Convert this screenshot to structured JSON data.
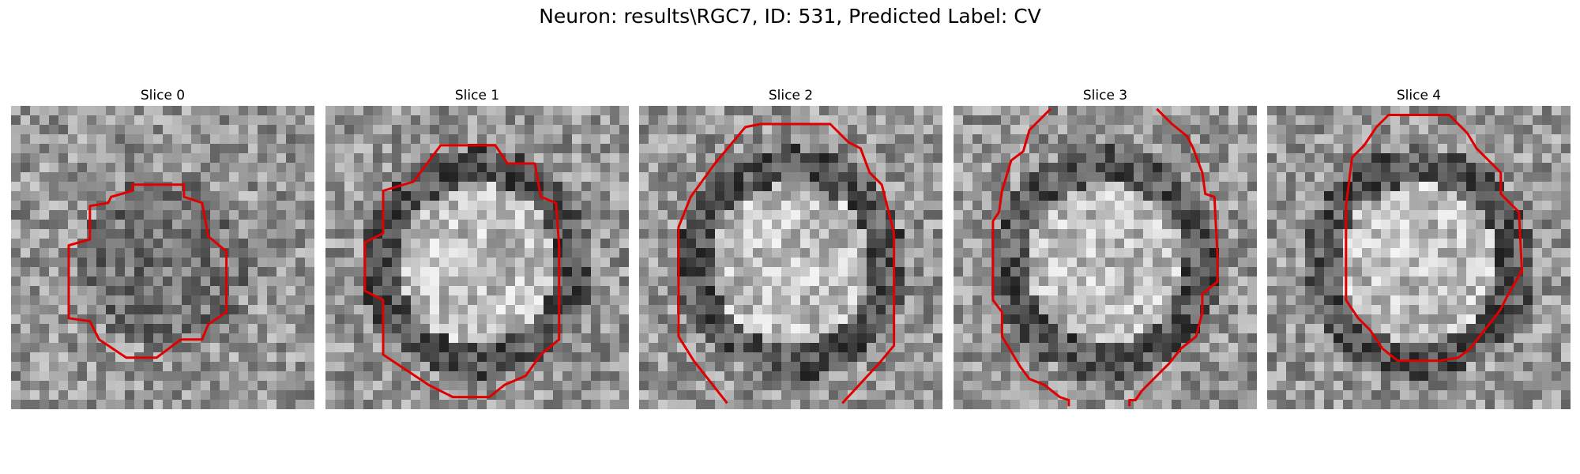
{
  "figure": {
    "suptitle": "Neuron: results\\RGC7, ID: 531, Predicted Label: CV",
    "contour_color": "#e00000"
  },
  "panels": [
    {
      "title": "Slice 0",
      "ring": "dark",
      "contour": [
        [
          0.4,
          0.26
        ],
        [
          0.57,
          0.26
        ],
        [
          0.57,
          0.3
        ],
        [
          0.63,
          0.32
        ],
        [
          0.65,
          0.43
        ],
        [
          0.71,
          0.48
        ],
        [
          0.71,
          0.68
        ],
        [
          0.65,
          0.72
        ],
        [
          0.63,
          0.77
        ],
        [
          0.56,
          0.77
        ],
        [
          0.48,
          0.83
        ],
        [
          0.38,
          0.83
        ],
        [
          0.29,
          0.77
        ],
        [
          0.26,
          0.71
        ],
        [
          0.19,
          0.7
        ],
        [
          0.19,
          0.46
        ],
        [
          0.26,
          0.44
        ],
        [
          0.26,
          0.33
        ],
        [
          0.32,
          0.32
        ],
        [
          0.33,
          0.3
        ],
        [
          0.4,
          0.28
        ]
      ]
    },
    {
      "title": "Slice 1",
      "ring": "ring",
      "contour": [
        [
          0.29,
          0.25
        ],
        [
          0.38,
          0.13
        ],
        [
          0.56,
          0.13
        ],
        [
          0.6,
          0.19
        ],
        [
          0.69,
          0.19
        ],
        [
          0.71,
          0.3
        ],
        [
          0.76,
          0.32
        ],
        [
          0.77,
          0.46
        ],
        [
          0.77,
          0.77
        ],
        [
          0.71,
          0.82
        ],
        [
          0.66,
          0.89
        ],
        [
          0.59,
          0.92
        ],
        [
          0.54,
          0.96
        ],
        [
          0.42,
          0.96
        ],
        [
          0.34,
          0.92
        ],
        [
          0.19,
          0.82
        ],
        [
          0.19,
          0.64
        ],
        [
          0.13,
          0.61
        ],
        [
          0.13,
          0.45
        ],
        [
          0.19,
          0.42
        ],
        [
          0.19,
          0.28
        ]
      ]
    },
    {
      "title": "Slice 2",
      "ring": "ring",
      "contour": [
        [
          0.29,
          0.98
        ],
        [
          0.18,
          0.84
        ],
        [
          0.13,
          0.76
        ],
        [
          0.13,
          0.4
        ],
        [
          0.17,
          0.3
        ],
        [
          0.25,
          0.19
        ],
        [
          0.35,
          0.07
        ],
        [
          0.4,
          0.06
        ],
        [
          0.63,
          0.06
        ],
        [
          0.69,
          0.12
        ],
        [
          0.73,
          0.14
        ],
        [
          0.76,
          0.22
        ],
        [
          0.8,
          0.26
        ],
        [
          0.82,
          0.34
        ],
        [
          0.84,
          0.42
        ],
        [
          0.84,
          0.79
        ],
        [
          0.79,
          0.85
        ],
        [
          0.67,
          0.98
        ]
      ]
    },
    {
      "title": "Slice 3",
      "ring": "ring",
      "contour": [
        [
          0.32,
          0.01
        ],
        [
          0.25,
          0.08
        ],
        [
          0.23,
          0.15
        ],
        [
          0.19,
          0.18
        ],
        [
          0.16,
          0.28
        ],
        [
          0.15,
          0.35
        ],
        [
          0.13,
          0.38
        ],
        [
          0.13,
          0.64
        ],
        [
          0.16,
          0.68
        ],
        [
          0.16,
          0.76
        ],
        [
          0.19,
          0.81
        ],
        [
          0.22,
          0.86
        ],
        [
          0.25,
          0.9
        ],
        [
          0.3,
          0.92
        ],
        [
          0.35,
          0.96
        ],
        [
          0.38,
          0.97
        ],
        [
          0.38,
          0.99
        ]
      ]
    },
    {
      "title": "Slice 4",
      "ring": "ring",
      "contour": [
        [
          0.4,
          0.03
        ],
        [
          0.6,
          0.03
        ],
        [
          0.66,
          0.09
        ],
        [
          0.69,
          0.14
        ],
        [
          0.77,
          0.22
        ],
        [
          0.77,
          0.29
        ],
        [
          0.83,
          0.35
        ],
        [
          0.84,
          0.55
        ],
        [
          0.84,
          0.54
        ],
        [
          0.83,
          0.56
        ],
        [
          0.79,
          0.63
        ],
        [
          0.77,
          0.67
        ],
        [
          0.74,
          0.71
        ],
        [
          0.7,
          0.76
        ],
        [
          0.67,
          0.8
        ],
        [
          0.63,
          0.83
        ],
        [
          0.57,
          0.84
        ],
        [
          0.43,
          0.84
        ],
        [
          0.38,
          0.8
        ],
        [
          0.34,
          0.74
        ],
        [
          0.3,
          0.7
        ],
        [
          0.26,
          0.64
        ],
        [
          0.26,
          0.48
        ],
        [
          0.26,
          0.33
        ],
        [
          0.28,
          0.17
        ],
        [
          0.32,
          0.13
        ],
        [
          0.36,
          0.07
        ]
      ]
    }
  ],
  "extra_contours": {
    "3": [
      [
        0.67,
        0.01
      ],
      [
        0.72,
        0.06
      ],
      [
        0.77,
        0.1
      ],
      [
        0.79,
        0.14
      ],
      [
        0.82,
        0.22
      ],
      [
        0.83,
        0.29
      ],
      [
        0.86,
        0.3
      ],
      [
        0.87,
        0.49
      ],
      [
        0.87,
        0.58
      ],
      [
        0.82,
        0.62
      ],
      [
        0.82,
        0.68
      ],
      [
        0.8,
        0.76
      ],
      [
        0.75,
        0.8
      ],
      [
        0.71,
        0.85
      ],
      [
        0.66,
        0.9
      ],
      [
        0.62,
        0.94
      ],
      [
        0.6,
        0.97
      ],
      [
        0.58,
        0.97
      ],
      [
        0.58,
        0.99
      ]
    ]
  }
}
